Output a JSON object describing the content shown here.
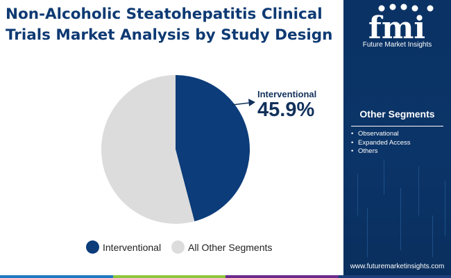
{
  "title": "Non-Alcoholic Steatohepatitis Clinical Trials Market Analysis by Study Design",
  "chart_data": {
    "type": "pie",
    "slices": [
      {
        "label": "Interventional",
        "value": 45.9,
        "color": "#0c3c7a"
      },
      {
        "label": "All Other Segments",
        "value": 54.1,
        "color": "#dcdcdc"
      }
    ],
    "callout": {
      "label": "Interventional",
      "value": "45.9%"
    },
    "legend": [
      "Interventional",
      "All Other Segments"
    ],
    "legend_position": "bottom"
  },
  "sidebar": {
    "brand_mark": "fmi",
    "brand_name": "Future Market Insights",
    "segments_title": "Other Segments",
    "segments": [
      "Observational",
      "Expanded Access",
      "Others"
    ],
    "url": "www.futuremarketinsights.com",
    "background_color": "#0b3468"
  },
  "footer_colors": [
    "#1f7ac1",
    "#8ec53f",
    "#6a2b8c",
    "#1b3f79"
  ]
}
